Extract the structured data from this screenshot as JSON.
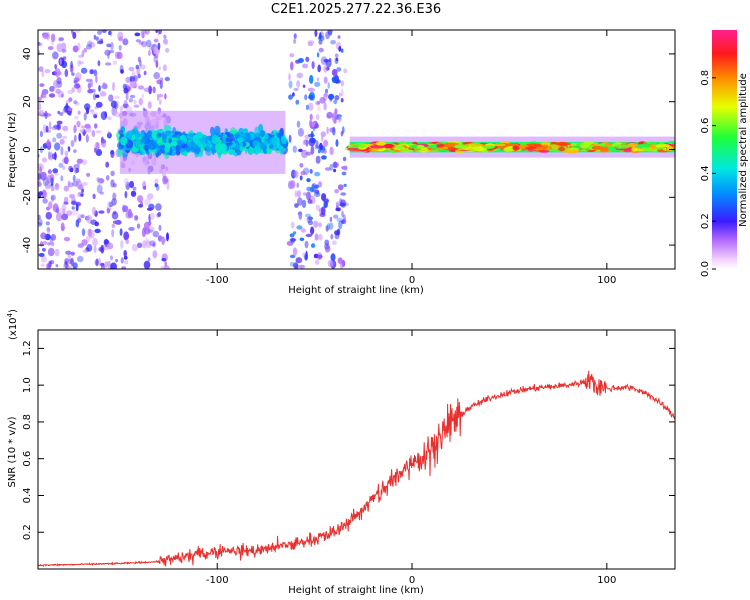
{
  "figure_title": "C2E1.2025.277.22.36.E36",
  "colors": {
    "snr_line": "#e8312e",
    "axis": "#000000",
    "background": "#ffffff"
  },
  "chart_data": [
    {
      "type": "heatmap",
      "title": "C2E1.2025.277.22.36.E36",
      "xlabel": "Height of straight line (km)",
      "ylabel": "Frequency (Hz)",
      "xlim": [
        -192,
        135
      ],
      "ylim": [
        -50,
        50
      ],
      "xticks": [
        -100,
        0,
        100
      ],
      "yticks": [
        -40,
        -20,
        0,
        20,
        40
      ],
      "colorbar": {
        "label": "Normalized spectral amplitude",
        "range": [
          0,
          1
        ],
        "ticks": [
          0.0,
          0.2,
          0.4,
          0.6,
          0.8
        ]
      },
      "regions": [
        {
          "x": [
            -192,
            -125
          ],
          "center_hz": 0,
          "spread_hz": 50,
          "amplitude": 0.2,
          "description": "scattered noise"
        },
        {
          "x": [
            -150,
            -65
          ],
          "center_hz": 3,
          "spread_hz": 6,
          "amplitude": 0.45,
          "description": "noisy band"
        },
        {
          "x": [
            -63,
            -34
          ],
          "center_hz": 0,
          "spread_hz": 50,
          "amplitude": 0.25,
          "description": "broadband column"
        },
        {
          "x": [
            -32,
            135
          ],
          "center_hz": 1,
          "spread_hz": 2,
          "amplitude": 0.95,
          "description": "clean narrow band"
        }
      ]
    },
    {
      "type": "line",
      "xlabel": "Height of straight line (km)",
      "ylabel": "SNR (10 * v/v)",
      "y_scale_label": "(x10",
      "y_scale_exp": "4",
      "y_scale_suffix": ")",
      "xlim": [
        -192,
        135
      ],
      "ylim": [
        0,
        1.3
      ],
      "xticks": [
        -100,
        0,
        100
      ],
      "yticks": [
        0.2,
        0.4,
        0.6,
        0.8,
        1.0,
        1.2
      ],
      "series": [
        {
          "name": "SNR",
          "x": [
            -192,
            -170,
            -150,
            -130,
            -120,
            -110,
            -100,
            -90,
            -80,
            -70,
            -60,
            -50,
            -40,
            -30,
            -20,
            -10,
            0,
            5,
            10,
            15,
            20,
            30,
            40,
            50,
            60,
            70,
            80,
            85,
            90,
            95,
            100,
            110,
            120,
            130,
            135
          ],
          "y": [
            0.02,
            0.025,
            0.03,
            0.04,
            0.06,
            0.08,
            0.1,
            0.1,
            0.1,
            0.12,
            0.14,
            0.16,
            0.2,
            0.28,
            0.38,
            0.48,
            0.58,
            0.62,
            0.66,
            0.72,
            0.8,
            0.88,
            0.93,
            0.96,
            0.98,
            0.99,
            1.0,
            1.01,
            1.02,
            1.0,
            0.98,
            0.99,
            0.96,
            0.88,
            0.82
          ]
        }
      ]
    }
  ]
}
